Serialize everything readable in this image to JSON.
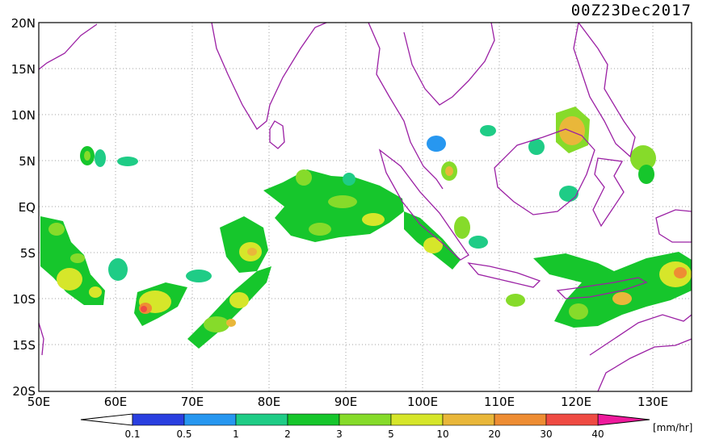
{
  "title": "00Z23Dec2017",
  "y_axis_labels": [
    "20N",
    "15N",
    "10N",
    "5N",
    "EQ",
    "5S",
    "10S",
    "15S",
    "20S"
  ],
  "x_axis_labels": [
    "50E",
    "60E",
    "70E",
    "80E",
    "90E",
    "100E",
    "110E",
    "120E",
    "130E"
  ],
  "colorbar": {
    "unit_label": "[mm/hr]",
    "tick_labels": [
      "0.1",
      "0.5",
      "1",
      "2",
      "3",
      "5",
      "10",
      "20",
      "30",
      "40"
    ],
    "colors": [
      "#2a3fe0",
      "#2797f0",
      "#1fcc86",
      "#16c62c",
      "#86db2a",
      "#d6e62a",
      "#e9b73a",
      "#ee8d33",
      "#ef4b43",
      "#ee1a9c"
    ]
  },
  "map_colors": {
    "coastline": "#9b20a4",
    "grid": "#a0a0a0"
  }
}
